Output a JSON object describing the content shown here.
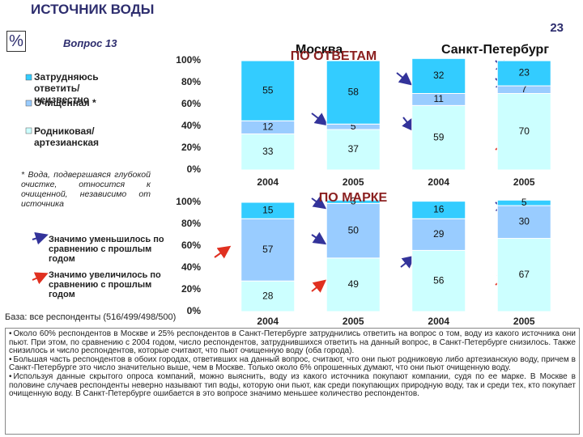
{
  "header": {
    "title": "ИСТОЧНИК ВОДЫ",
    "page_number": "23",
    "unit": "%",
    "question": "Вопрос 13"
  },
  "cities": [
    "Москва",
    "Санкт-Петербург"
  ],
  "footnote": "* Вода, подвергшаяся глубокой очистке, относится к очищенной, независимо от источника",
  "annotations": {
    "decrease": "Значимо уменьшилось по сравнению с прошлым годом",
    "increase": "Значимо увеличилось по сравнению с прошлым годом"
  },
  "base": "База: все респонденты (516/499/498/500)",
  "chart_data": [
    {
      "type": "bar",
      "stacked": true,
      "title": "ПО ОТВЕТАМ",
      "categories": [
        "2004",
        "2005",
        "2004",
        "2005"
      ],
      "series": [
        {
          "name": "Родниковая/ артезианская",
          "color": "#ccffff",
          "values": [
            33,
            37,
            59,
            70
          ]
        },
        {
          "name": "Очищенная *",
          "color": "#99ccff",
          "values": [
            12,
            5,
            11,
            7
          ]
        },
        {
          "name": "Затрудняюсь ответить/ неизвестно",
          "color": "#33ccff",
          "values": [
            55,
            58,
            32,
            23
          ]
        }
      ],
      "ylim": [
        0,
        100
      ],
      "yticks": [
        {
          "value": 0,
          "label": "0%"
        },
        {
          "value": 20,
          "label": "20%"
        },
        {
          "value": 40,
          "label": "40%"
        },
        {
          "value": 60,
          "label": "60%"
        },
        {
          "value": 80,
          "label": "80%"
        },
        {
          "value": 100,
          "label": "100%"
        }
      ]
    },
    {
      "type": "bar",
      "stacked": true,
      "title": "ПО МАРКЕ",
      "categories": [
        "2004",
        "2005",
        "2004",
        "2005"
      ],
      "series": [
        {
          "color": "#ccffff",
          "values": [
            28,
            49,
            56,
            67
          ]
        },
        {
          "color": "#99ccff",
          "values": [
            57,
            50,
            29,
            30
          ]
        },
        {
          "color": "#33ccff",
          "values": [
            15,
            3,
            16,
            5
          ]
        }
      ],
      "ylim": [
        0,
        100
      ],
      "yticks": [
        {
          "value": 0,
          "label": "0%"
        },
        {
          "value": 20,
          "label": "20%"
        },
        {
          "value": 40,
          "label": "40%"
        },
        {
          "value": 60,
          "label": "60%"
        },
        {
          "value": 80,
          "label": "80%"
        },
        {
          "value": 100,
          "label": "100%"
        }
      ]
    }
  ],
  "summary": [
    "Около 60% респондентов в Москве и 25% респондентов в Санкт-Петербурге затруднились ответить на вопрос о том, воду из какого источника они пьют. При этом, по сравнению с 2004 годом, число респондентов, затруднившихся ответить на данный вопрос, в Санкт-Петербурге снизилось. Также снизилось и число респондентов, которые считают, что пьют очищенную воду (оба города).",
    "Большая часть респондентов в обоих городах, ответивших на данный вопрос, считают, что они пьют родниковую либо артезианскую воду, причем в Санкт-Петербурге это число значительно выше, чем в Москве. Только около 6% опрошенных думают, что они пьют очищенную воду.",
    "Используя данные скрытого опроса компаний, можно выяснить, воду из какого источника покупают компании, судя по ее марке. В Москве в половине случаев респонденты неверно называют тип воды, которую они пьют, как среди покупающих природную воду, так и среди тех, кто покупает очищенную воду. В Санкт-Петербурге ошибается в это вопросе значимо меньшее количество респондентов."
  ]
}
